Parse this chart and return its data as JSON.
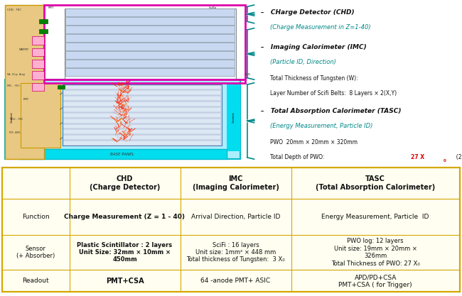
{
  "bg_color": "#ffffff",
  "table_bg": "#fffef0",
  "table_border": "#d4a800",
  "fig_width": 6.5,
  "fig_height": 4.17,
  "color_red": "#dd0000",
  "color_teal": "#008888",
  "color_orange": "#dd7700",
  "color_black": "#111111",
  "color_chd_fill": "#e8c882",
  "color_imc_border": "#dd00aa",
  "color_tasc_fill": "#00ddee",
  "color_tasc_bg": "#aaeeff",
  "color_strip": "#c8d8f0",
  "color_strip_border": "#8899aa",
  "color_det_bg": "#e8eef8",
  "color_pink": "#ffb0d0",
  "color_coolant": "#00bbcc",
  "table_headers": [
    "",
    "CHD\n(Charge Detector)",
    "IMC\n(Imaging Calorimeter)",
    "TASC\n(Total Absorption Calorimeter)"
  ],
  "row0_label": "Function",
  "row0_chd": "Charge Measurement (Z = 1 - 40)",
  "row0_imc": "Arrival Direction, Particle ID",
  "row0_tasc": "Energy Measurement, Particle  ID",
  "row1_label": "Sensor\n(+ Absorber)",
  "row1_chd": "Plastic Scintillator : 2 layers\nUnit Size: 32mm × 10mm ×\n450mm",
  "row1_imc": "SciFi : 16 layers\nUnit size: 1mm² × 448 mm\nTotal thickness of Tungsten:  3 X₀",
  "row1_tasc": "PWO log: 12 layers\nUnit size: 19mm × 20mm ×\n326mm\nTotal Thickness of PWO: 27 X₀",
  "row2_label": "Readout",
  "row2_chd": "PMT+CSA",
  "row2_imc": "64 -anode PMT+ ASIC",
  "row2_tasc": "APD/PD+CSA\nPMT+CSA ( for Trigger)"
}
